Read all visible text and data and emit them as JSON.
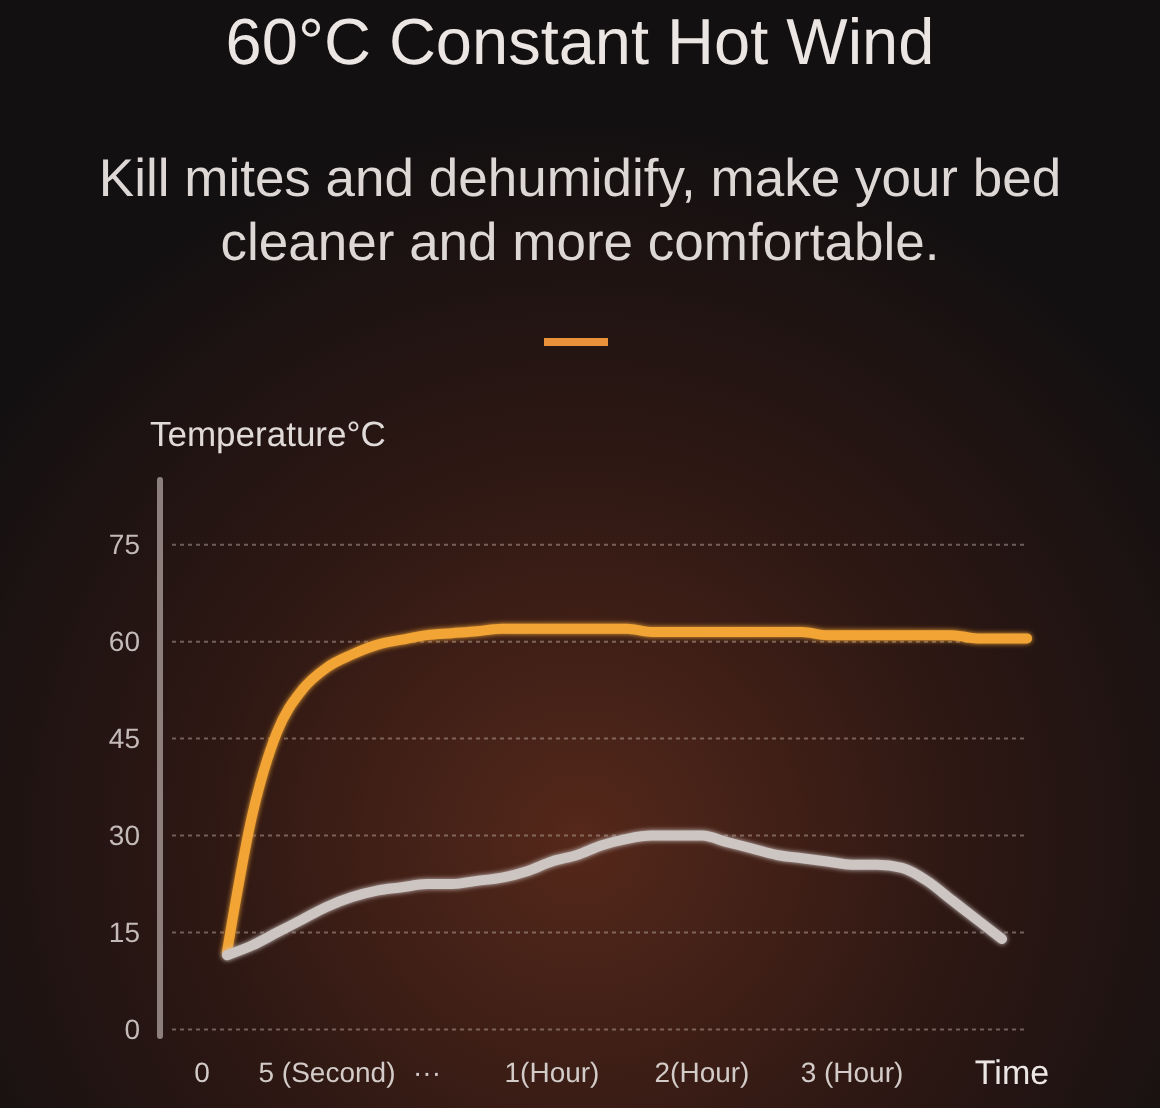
{
  "chart_data": {
    "type": "line",
    "title": "60°C Constant Hot Wind",
    "subtitle": "Kill mites and dehumidify, make your bed cleaner and more comfortable.",
    "xlabel": "Time",
    "ylabel": "Temperature°C",
    "categories": [
      "0",
      null,
      null,
      null,
      null,
      "5 (Second)",
      null,
      null,
      null,
      "···",
      null,
      null,
      null,
      null,
      "1(Hour)",
      null,
      null,
      null,
      null,
      null,
      "2(Hour)",
      null,
      null,
      null,
      null,
      null,
      "3 (Hour)",
      null,
      null,
      null,
      null,
      null,
      null,
      null
    ],
    "ylim": [
      -1,
      85
    ],
    "yticks": [
      0,
      15,
      30,
      45,
      60,
      75
    ],
    "grid": "y",
    "series": [
      {
        "color": "#f2a536",
        "values": [
          null,
          12,
          33,
          46,
          52.5,
          56,
          58,
          59.5,
          60.3,
          61,
          61.3,
          61.6,
          62,
          62,
          62,
          62,
          62,
          62,
          61.5,
          61.5,
          61.5,
          61.5,
          61.5,
          61.5,
          61.5,
          61,
          61,
          61,
          61,
          61,
          61,
          60.5,
          60.5,
          60.5
        ]
      },
      {
        "color": "#cdc5c2",
        "values": [
          null,
          11.5,
          13,
          15,
          17,
          19,
          20.5,
          21.5,
          22,
          22.5,
          22.5,
          23,
          23.5,
          24.5,
          26,
          27,
          28.5,
          29.5,
          30,
          30,
          30,
          29,
          28,
          27,
          26.5,
          26,
          25.5,
          25.5,
          25,
          23,
          20,
          17,
          14,
          null
        ]
      }
    ]
  }
}
